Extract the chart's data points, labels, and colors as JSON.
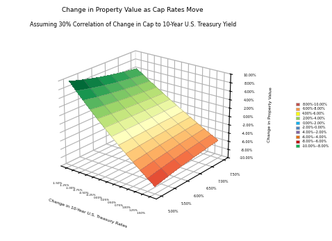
{
  "title_line1": "Change in Property Value as Cap Rates Move",
  "title_line2": "Assuming 30% Correlation of Change in Cap to 10-Year U.S. Treasury Yield",
  "xlabel": "Change in 10-Year U.S. Treasury Rates",
  "zlabel": "Change in Property Value",
  "treasury_changes": [
    -1.5,
    -1.25,
    -1.0,
    -0.75,
    -0.5,
    -0.25,
    0.0,
    0.25,
    0.5,
    0.75,
    1.0,
    1.25,
    1.5
  ],
  "cap_rates": [
    5.0,
    5.5,
    6.0,
    6.5,
    7.0,
    7.5
  ],
  "correlation": 0.3,
  "background_color": "#ffffff",
  "legend_labels": [
    "8.00%-10.00%",
    "6.00%-8.00%",
    "4.00%-6.00%",
    "2.00%-4.00%",
    "0.00%-2.00%",
    "-2.00%-0.00%",
    "-4.00%--2.00%",
    "-6.00%--4.00%",
    "-8.00%--6.00%",
    "-10.00%--8.00%"
  ],
  "legend_colors": [
    "#c0504d",
    "#f79646",
    "#ffff00",
    "#92d050",
    "#00b0f0",
    "#4f81bd",
    "#8064a2",
    "#e36c09",
    "#c00000",
    "#00b050"
  ],
  "elev": 22,
  "azim": -52
}
